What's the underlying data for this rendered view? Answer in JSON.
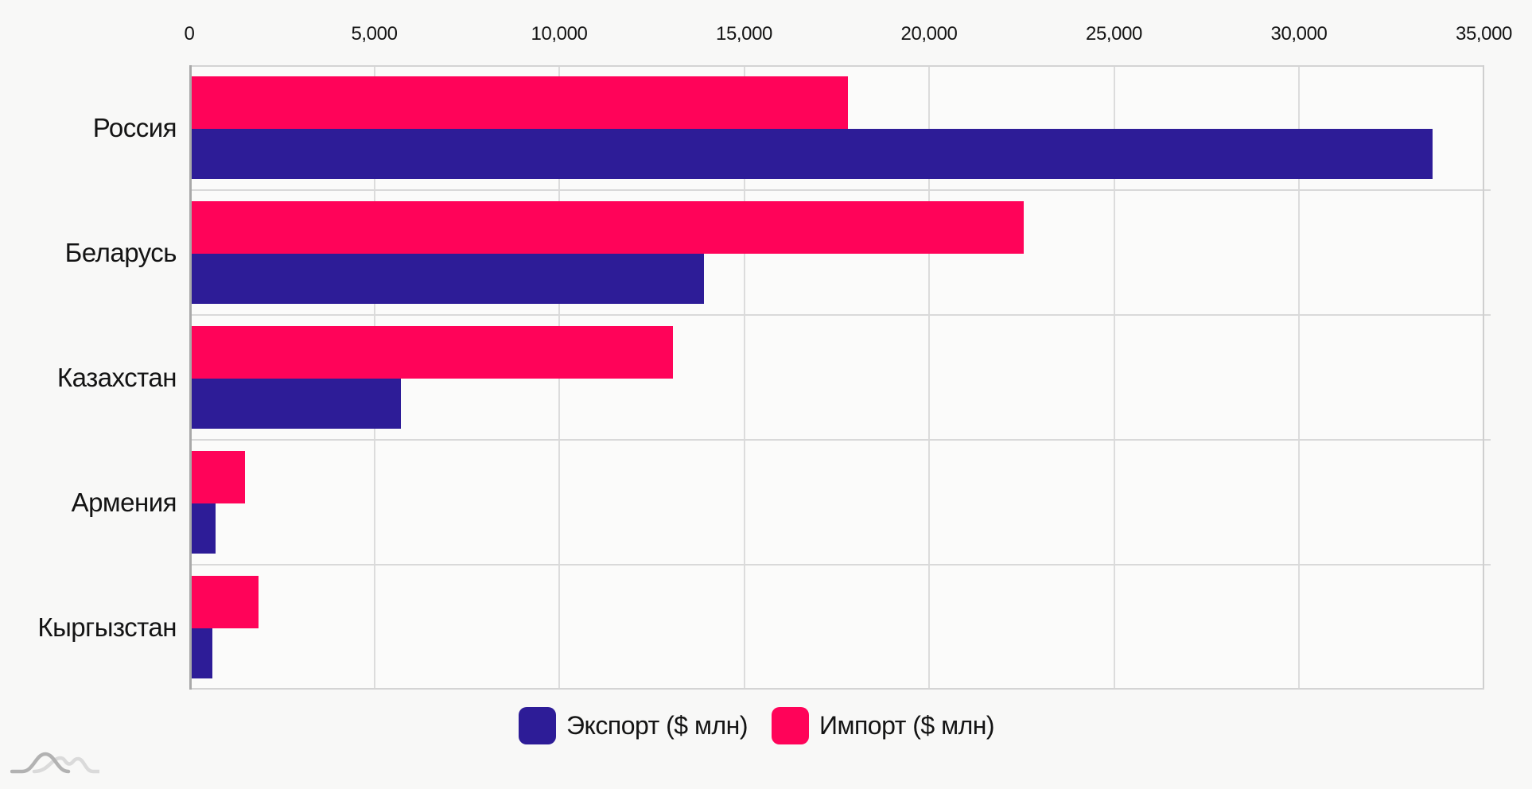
{
  "chart_data": {
    "type": "bar",
    "orientation": "horizontal",
    "title": "",
    "categories": [
      "Россия",
      "Беларусь",
      "Казахстан",
      "Армения",
      "Кыргызстан"
    ],
    "series": [
      {
        "name": "Экспорт ($ млн)",
        "color": "#2d1c97",
        "values": [
          33550,
          13850,
          5650,
          650,
          550
        ]
      },
      {
        "name": "Импорт ($ млн)",
        "color": "#ff0359",
        "values": [
          17750,
          22500,
          13000,
          1450,
          1800
        ]
      }
    ],
    "bar_order_top_to_bottom_in_group": [
      "Импорт ($ млн)",
      "Экспорт ($ млн)"
    ],
    "xlim": [
      0,
      35000
    ],
    "x_tick_values": [
      0,
      5000,
      10000,
      15000,
      20000,
      25000,
      30000,
      35000
    ],
    "x_tick_labels": [
      "0",
      "5,000",
      "10,000",
      "15,000",
      "20,000",
      "25,000",
      "30,000",
      "35,000"
    ],
    "grid": true,
    "axis_position": "top",
    "legend_position": "bottom-center"
  },
  "icons": {
    "watermark": "wave-curves-logo-icon"
  },
  "colors": {
    "page_background": "#f8f8f7",
    "plot_background": "#fbfbfa",
    "gridline": "#dcdcdc",
    "group_separator": "#d9d9d9",
    "axis_line": "#a9a9a9",
    "text": "#141414",
    "watermark_dark": "#b2b2b2",
    "watermark_light": "#dadada"
  }
}
